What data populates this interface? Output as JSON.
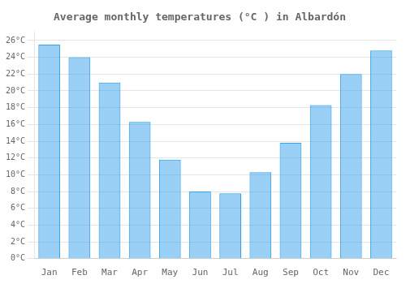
{
  "chart_data": {
    "type": "bar",
    "title": "Average monthly temperatures (°C ) in Albardón",
    "categories": [
      "Jan",
      "Feb",
      "Mar",
      "Apr",
      "May",
      "Jun",
      "Jul",
      "Aug",
      "Sep",
      "Oct",
      "Nov",
      "Dec"
    ],
    "values": [
      25.5,
      24.0,
      21.0,
      16.3,
      11.8,
      8.0,
      7.8,
      10.3,
      13.8,
      18.3,
      22.0,
      24.8
    ],
    "ylim": [
      0,
      27
    ],
    "yticks": [
      {
        "value": 0,
        "label": "0°C"
      },
      {
        "value": 2,
        "label": "2°C"
      },
      {
        "value": 4,
        "label": "4°C"
      },
      {
        "value": 6,
        "label": "6°C"
      },
      {
        "value": 8,
        "label": "8°C"
      },
      {
        "value": 10,
        "label": "10°C"
      },
      {
        "value": 12,
        "label": "12°C"
      },
      {
        "value": 14,
        "label": "14°C"
      },
      {
        "value": 16,
        "label": "16°C"
      },
      {
        "value": 18,
        "label": "18°C"
      },
      {
        "value": 20,
        "label": "20°C"
      },
      {
        "value": 22,
        "label": "22°C"
      },
      {
        "value": 24,
        "label": "24°C"
      },
      {
        "value": 26,
        "label": "26°C"
      }
    ],
    "grid": true
  }
}
